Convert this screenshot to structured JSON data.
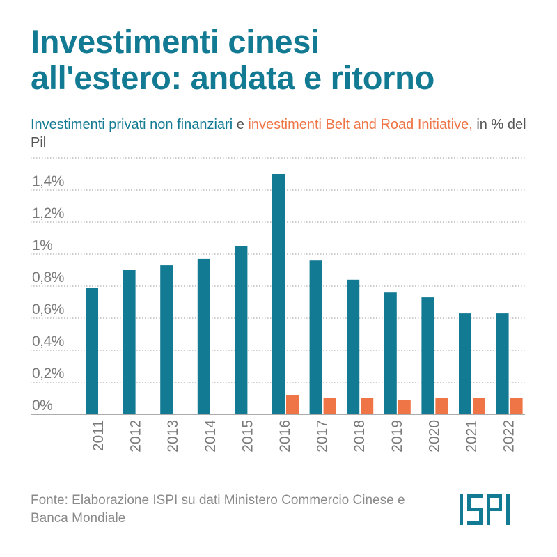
{
  "header": {
    "title_line1": "Investimenti cinesi",
    "title_line2": "all'estero: andata e ritorno",
    "subtitle_series1": "Investimenti privati non finanziari",
    "subtitle_connector": " e ",
    "subtitle_series2": "investimenti Belt and Road Initiative,",
    "subtitle_suffix": " in % del Pil"
  },
  "footer": {
    "source": "Fonte: Elaborazione ISPI su dati Ministero Commercio Cinese e Banca Mondiale",
    "logo_text": "ISPI"
  },
  "colors": {
    "series1": "#137a93",
    "series2": "#ef7547",
    "title": "#137a93",
    "grid": "#9a9a9a"
  },
  "chart_data": {
    "type": "bar",
    "title": "",
    "xlabel": "",
    "ylabel": "",
    "ylim": [
      0,
      1.6
    ],
    "grid": true,
    "legend": "in subtitle",
    "y_ticks": [
      0,
      0.2,
      0.4,
      0.6,
      0.8,
      1.0,
      1.2,
      1.4
    ],
    "y_tick_labels": [
      "0%",
      "0,2%",
      "0,4%",
      "0,6%",
      "0,8%",
      "1%",
      "1,2%",
      "1,4%"
    ],
    "categories": [
      "2011",
      "2012",
      "2013",
      "2014",
      "2015",
      "2016",
      "2017",
      "2018",
      "2019",
      "2020",
      "2021",
      "2022"
    ],
    "series": [
      {
        "name": "Investimenti privati non finanziari",
        "values": [
          0.79,
          0.9,
          0.93,
          0.97,
          1.05,
          1.5,
          0.96,
          0.84,
          0.76,
          0.73,
          0.63,
          0.63
        ]
      },
      {
        "name": "investimenti Belt and Road Initiative",
        "values": [
          null,
          null,
          null,
          null,
          null,
          0.12,
          0.1,
          0.1,
          0.09,
          0.1,
          0.1,
          0.1
        ]
      }
    ]
  }
}
